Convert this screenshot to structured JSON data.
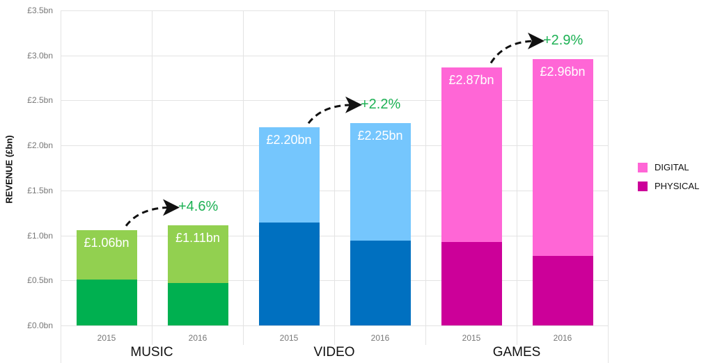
{
  "chart_data": {
    "type": "bar",
    "stacked": true,
    "title": "",
    "xlabel": "",
    "ylabel": "REVENUE (£bn)",
    "ylim": [
      0,
      3.5
    ],
    "yticks": [
      "£0.0bn",
      "£0.5bn",
      "£1.0bn",
      "£1.5bn",
      "£2.0bn",
      "£2.5bn",
      "£3.0bn",
      "£3.5bn"
    ],
    "grid": true,
    "legend_position": "right",
    "groups": [
      "MUSIC",
      "VIDEO",
      "GAMES"
    ],
    "categories": [
      "2015",
      "2016",
      "2015",
      "2016",
      "2015",
      "2016"
    ],
    "series": [
      {
        "name": "PHYSICAL",
        "values": [
          0.51,
          0.47,
          1.14,
          0.94,
          0.93,
          0.77
        ]
      },
      {
        "name": "DIGITAL",
        "values": [
          0.55,
          0.64,
          1.06,
          1.31,
          1.94,
          2.19
        ]
      }
    ],
    "totals": [
      1.06,
      1.11,
      2.2,
      2.25,
      2.87,
      2.96
    ],
    "total_labels": [
      "£1.06bn",
      "£1.11bn",
      "£2.20bn",
      "£2.25bn",
      "£2.87bn",
      "£2.96bn"
    ],
    "annotations": [
      "+4.6%",
      "+2.2%",
      "+2.9%"
    ]
  },
  "legend": {
    "digital": "DIGITAL",
    "physical": "PHYSICAL"
  },
  "colors": {
    "music_digital": "#92d050",
    "music_physical": "#00b050",
    "video_digital": "#75c6fd",
    "video_physical": "#0070c0",
    "games_digital": "#ff66d6",
    "games_physical": "#cc0099",
    "growth_text": "#1db154"
  }
}
